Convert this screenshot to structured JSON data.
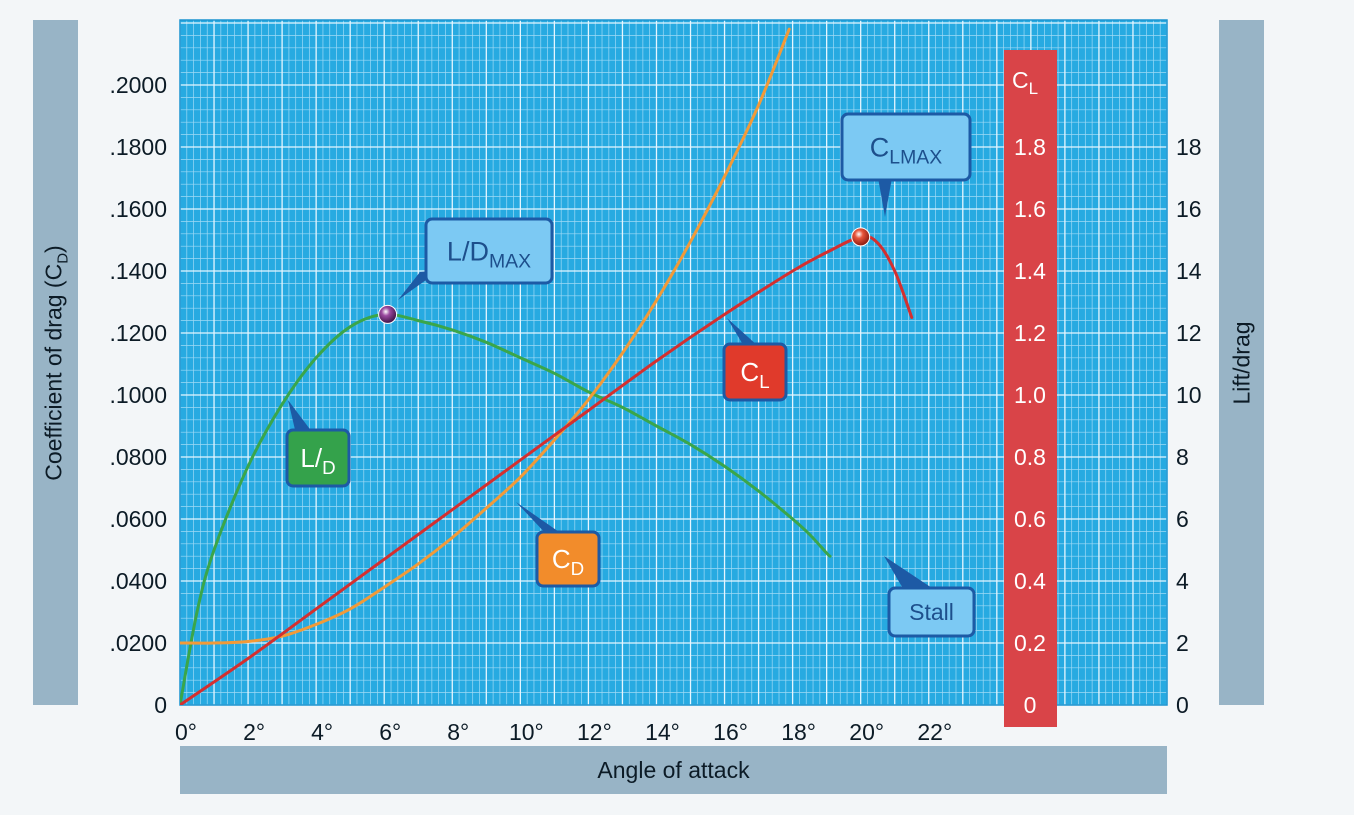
{
  "chart_data": {
    "type": "line",
    "xlabel": "Angle of attack",
    "ylabel_left": "Coefficient of drag (C",
    "ylabel_left_sub": "D",
    "ylabel_left_tail": ")",
    "ylabel_right": "Lift/drag",
    "x_ticks": [
      "0°",
      "2°",
      "4°",
      "6°",
      "8°",
      "10°",
      "12°",
      "14°",
      "16°",
      "18°",
      "20°",
      "22°"
    ],
    "left_ticks": [
      "0",
      ".0200",
      ".0400",
      ".0600",
      ".0800",
      ".1000",
      ".1200",
      ".1400",
      ".1600",
      ".1800",
      ".2000"
    ],
    "right_ticks": [
      "0",
      "2",
      "4",
      "6",
      "8",
      "10",
      "12",
      "14",
      "16",
      "18"
    ],
    "cl_axis_title": "C",
    "cl_axis_title_sub": "L",
    "cl_ticks": [
      "0",
      "0.2",
      "0.4",
      "0.6",
      "0.8",
      "1.0",
      "1.2",
      "1.4",
      "1.6",
      "1.8"
    ],
    "xlim": [
      0,
      29
    ],
    "ylim_left": [
      0,
      0.2
    ],
    "ylim_right": [
      0,
      20
    ],
    "ylim_cl": [
      0,
      2.0
    ],
    "grid": true,
    "colors": {
      "grid_bg": "#27aae1",
      "cl_band": "#d94448",
      "cl": "#d42f2f",
      "cd": "#f29a38",
      "ld": "#3aa64a",
      "callout_bg": "#7cc9f3",
      "callout_border": "#1d5aa5"
    },
    "series": [
      {
        "name": "C",
        "name_sub": "L",
        "axis": "cl",
        "x": [
          0,
          2,
          4,
          6,
          8,
          10,
          12,
          14,
          16,
          18,
          19,
          20,
          20.5,
          21,
          21.5
        ],
        "y": [
          0,
          0.15,
          0.31,
          0.47,
          0.63,
          0.79,
          0.95,
          1.11,
          1.26,
          1.4,
          1.46,
          1.51,
          1.49,
          1.4,
          1.25
        ]
      },
      {
        "name": "C",
        "name_sub": "D",
        "axis": "left",
        "x": [
          0,
          1,
          2,
          3,
          4,
          5,
          6,
          7,
          8,
          9,
          10,
          11,
          12,
          13,
          14,
          15,
          16,
          17,
          17.9
        ],
        "y": [
          0.02,
          0.02,
          0.0205,
          0.0222,
          0.026,
          0.031,
          0.038,
          0.0455,
          0.054,
          0.0635,
          0.0735,
          0.0855,
          0.0985,
          0.1135,
          0.1305,
          0.1495,
          0.1705,
          0.1935,
          0.218
        ]
      },
      {
        "name": "L",
        "name_sub": "D",
        "axis": "right",
        "x": [
          0,
          0.5,
          1,
          2,
          3,
          4,
          5,
          6,
          7,
          8,
          9,
          10,
          11,
          12,
          13,
          14,
          15,
          16,
          17,
          18,
          18.5,
          19,
          19.1
        ],
        "y": [
          0,
          3.0,
          5.0,
          7.7,
          9.7,
          11.2,
          12.2,
          12.6,
          12.4,
          12.1,
          11.7,
          11.2,
          10.7,
          10.1,
          9.6,
          9.0,
          8.4,
          7.7,
          6.9,
          6.0,
          5.5,
          4.9,
          4.8
        ]
      }
    ],
    "markers": [
      {
        "series": "cl",
        "x": 20.0,
        "y": 1.51
      },
      {
        "series": "ld",
        "x": 6.1,
        "y": 12.6
      }
    ],
    "annotations": {
      "ld_max": {
        "main": "L/D",
        "sub": "MAX"
      },
      "cl_max": {
        "main": "C",
        "sub": "L",
        "sub2": "MAX"
      },
      "cl_label": {
        "main": "C",
        "sub": "L"
      },
      "ld_label": {
        "main": "L/",
        "sub": "D"
      },
      "cd_label": {
        "main": "C",
        "sub": "D"
      },
      "stall": {
        "text": "Stall"
      }
    }
  }
}
